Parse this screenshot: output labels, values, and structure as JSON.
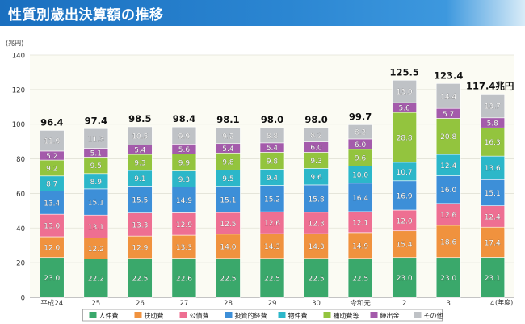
{
  "title": "性質別歳出決算額の推移",
  "chart_data": {
    "type": "bar",
    "stacked": true,
    "y_unit": "(兆円)",
    "x_unit": "(年度)",
    "ylim": [
      0,
      140
    ],
    "yticks": [
      0,
      20,
      40,
      60,
      80,
      100,
      120,
      140
    ],
    "categories": [
      "平成24",
      "25",
      "26",
      "27",
      "28",
      "29",
      "30",
      "令和元",
      "2",
      "3",
      "4"
    ],
    "totals": [
      "96.4",
      "97.4",
      "98.5",
      "98.4",
      "98.1",
      "98.0",
      "98.0",
      "99.7",
      "125.5",
      "123.4",
      "117.4兆円"
    ],
    "series": [
      {
        "name": "人件費",
        "color": "#3aa86b",
        "values": [
          23.0,
          22.2,
          22.5,
          22.6,
          22.5,
          22.5,
          22.5,
          22.5,
          23.0,
          23.0,
          23.1
        ]
      },
      {
        "name": "扶助費",
        "color": "#f0923e",
        "values": [
          12.0,
          12.2,
          12.9,
          13.3,
          14.0,
          14.3,
          14.3,
          14.9,
          15.4,
          18.6,
          17.4
        ]
      },
      {
        "name": "公債費",
        "color": "#ee6f92",
        "values": [
          13.0,
          13.1,
          13.3,
          12.9,
          12.5,
          12.6,
          12.3,
          12.1,
          12.0,
          12.6,
          12.4
        ]
      },
      {
        "name": "投資的経費",
        "color": "#3d8fd8",
        "values": [
          13.4,
          15.1,
          15.5,
          14.9,
          15.1,
          15.2,
          15.8,
          16.4,
          16.9,
          16.0,
          15.1
        ]
      },
      {
        "name": "物件費",
        "color": "#2cb7c9",
        "values": [
          8.7,
          8.9,
          9.1,
          9.3,
          9.5,
          9.4,
          9.6,
          10.0,
          10.7,
          12.4,
          13.6
        ]
      },
      {
        "name": "補助費等",
        "color": "#93c43e",
        "values": [
          9.2,
          9.5,
          9.3,
          9.9,
          9.8,
          9.8,
          9.3,
          9.6,
          28.8,
          20.8,
          16.3
        ]
      },
      {
        "name": "繰出金",
        "color": "#a45bab",
        "values": [
          5.2,
          5.1,
          5.4,
          5.6,
          5.4,
          5.4,
          6.0,
          6.0,
          5.6,
          5.7,
          5.8
        ]
      },
      {
        "name": "その他",
        "color": "#bfc2c6",
        "values": [
          11.9,
          11.3,
          10.5,
          9.9,
          9.2,
          8.8,
          8.2,
          8.2,
          13.0,
          14.4,
          13.7
        ]
      }
    ],
    "grid": true,
    "legend_position": "bottom"
  }
}
